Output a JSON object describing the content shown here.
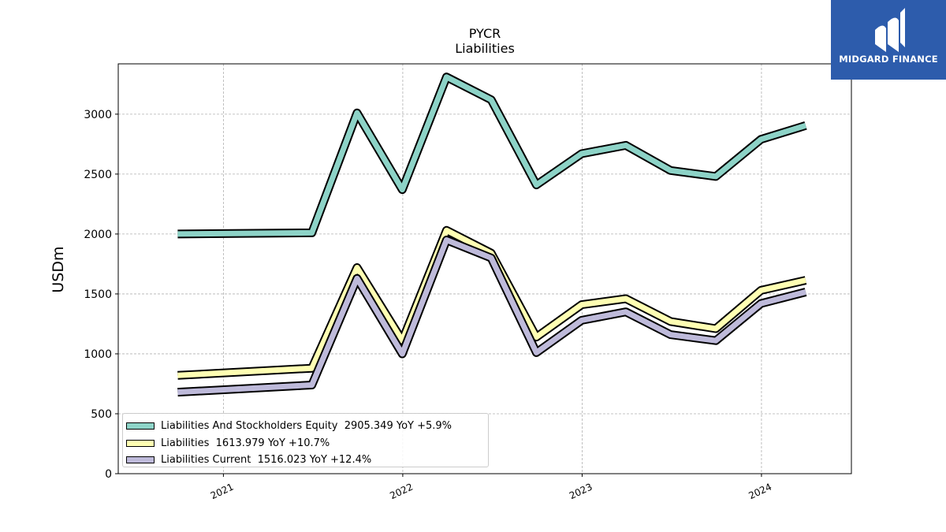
{
  "chart_data": {
    "type": "line",
    "title": "PYCR",
    "subtitle": "Liabilities",
    "xlabel": "",
    "ylabel": "USDm",
    "ylim": [
      0,
      3420
    ],
    "xlim": [
      "2020-06-01",
      "2024-07-02"
    ],
    "yticks": [
      0,
      500,
      1000,
      1500,
      2000,
      2500,
      3000
    ],
    "xticks": [
      "2021",
      "2022",
      "2023",
      "2024"
    ],
    "grid": true,
    "legend_position": "lower-left",
    "x": [
      "2020-09-30",
      "2021-06-30",
      "2021-09-30",
      "2021-12-31",
      "2022-03-31",
      "2022-06-30",
      "2022-09-30",
      "2022-12-31",
      "2023-03-31",
      "2023-06-30",
      "2023-09-30",
      "2023-12-31",
      "2024-03-31"
    ],
    "series": [
      {
        "name": "Liabilities And Stockholders Equity",
        "legend_label": "Liabilities And Stockholders Equity  2905.349 YoY +5.9%",
        "color": "#8dd3c7",
        "values": [
          2000,
          2010,
          3010,
          2370,
          3310,
          3120,
          2410,
          2670,
          2740,
          2530,
          2480,
          2790,
          2905.349
        ]
      },
      {
        "name": "Liabilities",
        "legend_label": "Liabilities  1613.979 YoY +10.7%",
        "color": "#ffffb3",
        "values": [
          820,
          880,
          1720,
          1110,
          2030,
          1840,
          1140,
          1410,
          1460,
          1270,
          1210,
          1530,
          1613.979
        ]
      },
      {
        "name": "Liabilities Current",
        "legend_label": "Liabilities Current  1516.023 YoY +12.4%",
        "color": "#bebada",
        "values": [
          680,
          740,
          1630,
          1000,
          1950,
          1800,
          1010,
          1280,
          1350,
          1160,
          1110,
          1420,
          1516.023
        ]
      }
    ]
  },
  "logo": {
    "text": "MIDGARD FINANCE",
    "color": "#2d5cac"
  }
}
